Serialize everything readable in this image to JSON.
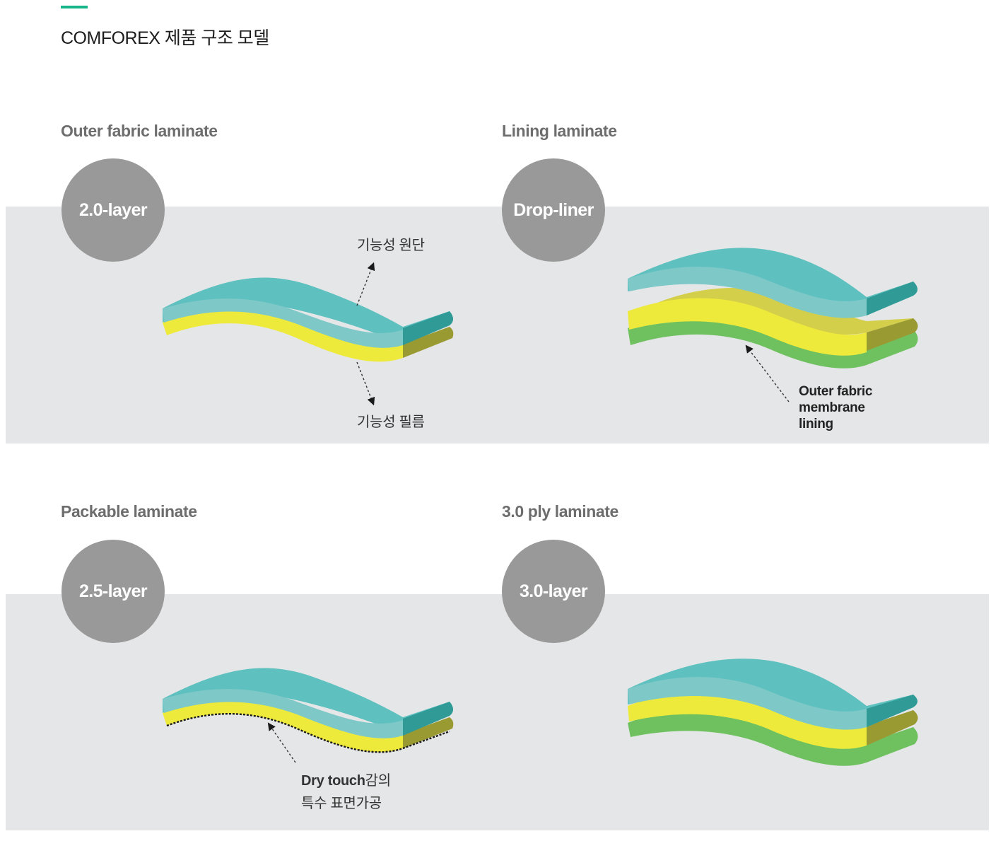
{
  "header": {
    "title": "COMFOREX 제품 구조 모델"
  },
  "colors": {
    "accent": "#16b58a",
    "band": "#e5e6e7",
    "badge": "#999999",
    "teal": "#5fc1bf",
    "teal_light": "#7fc8c8",
    "teal_dark": "#2f9a96",
    "yellow": "#eeea3b",
    "olive": "#9a9a33",
    "olive_layer": "#d4cf4a",
    "green": "#6fc160"
  },
  "sections": [
    {
      "title": "Outer fabric laminate",
      "badge": "2.0-layer",
      "labels": {
        "top": "기능성 원단",
        "bottom": "기능성 필름"
      }
    },
    {
      "title": "Lining laminate",
      "badge": "Drop-liner",
      "labels": {
        "line1": "Outer fabric",
        "line2": "membrane",
        "line3": "lining"
      }
    },
    {
      "title": "Packable laminate",
      "badge": "2.5-layer",
      "labels": {
        "line1_en": "Dry touch",
        "line1_ko": "감의",
        "line2": "특수 표면가공"
      }
    },
    {
      "title": "3.0 ply  laminate",
      "badge": "3.0-layer"
    }
  ]
}
